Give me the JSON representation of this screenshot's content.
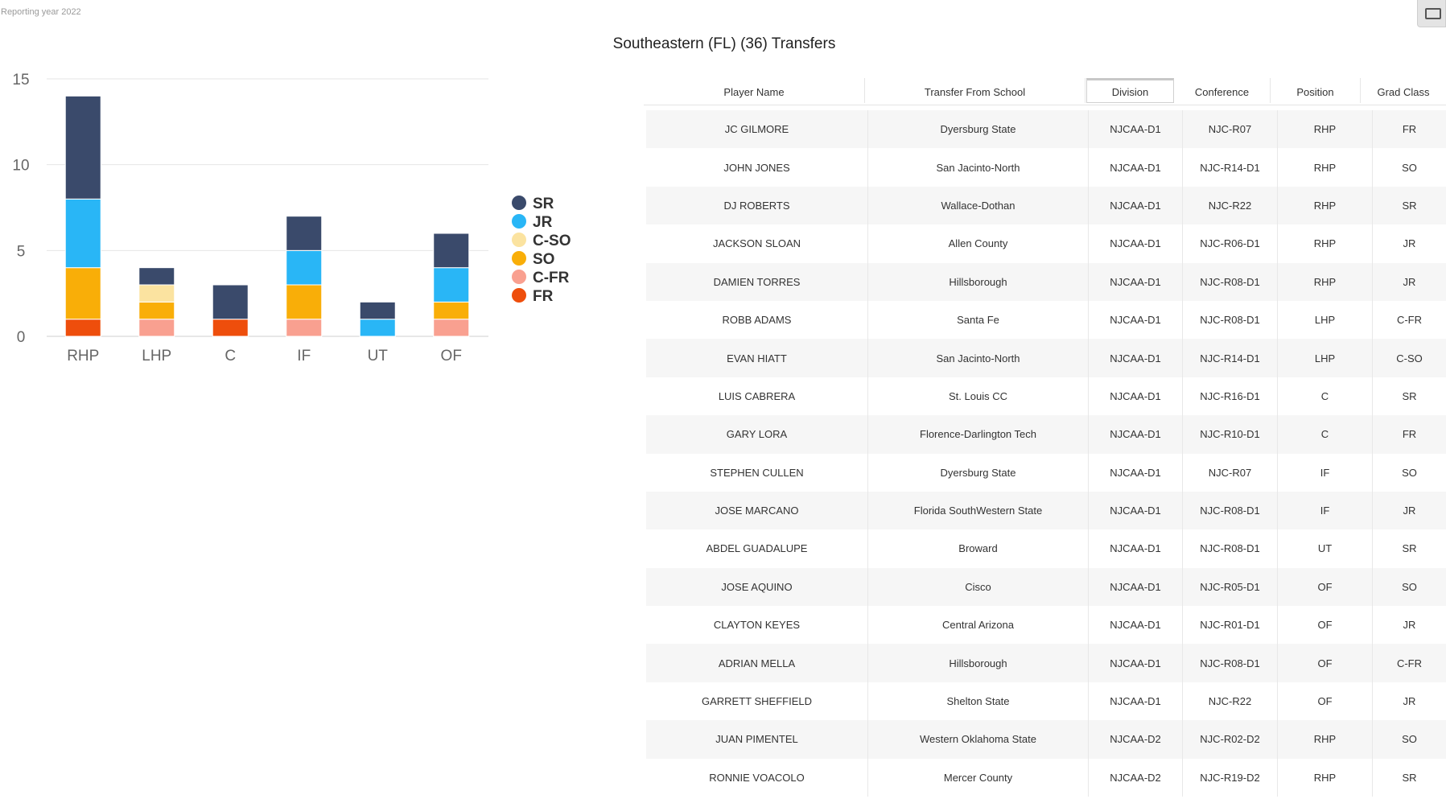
{
  "reporting_year": "Reporting year 2022",
  "page_title": "Southeastern (FL) (36) Transfers",
  "colors": {
    "SR": "#3a4a6b",
    "JR": "#29b6f6",
    "C-SO": "#fbe3a0",
    "SO": "#f9ae08",
    "C-FR": "#f9a090",
    "FR": "#ee4e0c"
  },
  "chart_data": {
    "type": "bar",
    "stacked": true,
    "categories": [
      "RHP",
      "LHP",
      "C",
      "IF",
      "UT",
      "OF"
    ],
    "series": [
      {
        "name": "FR",
        "values": [
          1,
          0,
          1,
          0,
          0,
          0
        ]
      },
      {
        "name": "C-FR",
        "values": [
          0,
          1,
          0,
          1,
          0,
          1
        ]
      },
      {
        "name": "SO",
        "values": [
          3,
          1,
          0,
          2,
          0,
          1
        ]
      },
      {
        "name": "C-SO",
        "values": [
          0,
          1,
          0,
          0,
          0,
          0
        ]
      },
      {
        "name": "JR",
        "values": [
          4,
          0,
          0,
          2,
          1,
          2
        ]
      },
      {
        "name": "SR",
        "values": [
          6,
          1,
          2,
          2,
          1,
          2
        ]
      }
    ],
    "legend": [
      "SR",
      "JR",
      "C-SO",
      "SO",
      "C-FR",
      "FR"
    ],
    "legend_position": "right",
    "yticks": [
      0,
      5,
      10,
      15
    ],
    "ylim": [
      0,
      15
    ],
    "grid": true
  },
  "table": {
    "columns": [
      "Player Name",
      "Transfer From School",
      "Division",
      "Conference",
      "Position",
      "Grad Class"
    ],
    "active_column": "Division",
    "rows": [
      [
        "JC GILMORE",
        "Dyersburg State",
        "NJCAA-D1",
        "NJC-R07",
        "RHP",
        "FR"
      ],
      [
        "JOHN JONES",
        "San Jacinto-North",
        "NJCAA-D1",
        "NJC-R14-D1",
        "RHP",
        "SO"
      ],
      [
        "DJ ROBERTS",
        "Wallace-Dothan",
        "NJCAA-D1",
        "NJC-R22",
        "RHP",
        "SR"
      ],
      [
        "JACKSON SLOAN",
        "Allen County",
        "NJCAA-D1",
        "NJC-R06-D1",
        "RHP",
        "JR"
      ],
      [
        "DAMIEN TORRES",
        "Hillsborough",
        "NJCAA-D1",
        "NJC-R08-D1",
        "RHP",
        "JR"
      ],
      [
        "ROBB ADAMS",
        "Santa Fe",
        "NJCAA-D1",
        "NJC-R08-D1",
        "LHP",
        "C-FR"
      ],
      [
        "EVAN HIATT",
        "San Jacinto-North",
        "NJCAA-D1",
        "NJC-R14-D1",
        "LHP",
        "C-SO"
      ],
      [
        "LUIS CABRERA",
        "St. Louis CC",
        "NJCAA-D1",
        "NJC-R16-D1",
        "C",
        "SR"
      ],
      [
        "GARY LORA",
        "Florence-Darlington Tech",
        "NJCAA-D1",
        "NJC-R10-D1",
        "C",
        "FR"
      ],
      [
        "STEPHEN CULLEN",
        "Dyersburg State",
        "NJCAA-D1",
        "NJC-R07",
        "IF",
        "SO"
      ],
      [
        "JOSE MARCANO",
        "Florida SouthWestern State",
        "NJCAA-D1",
        "NJC-R08-D1",
        "IF",
        "JR"
      ],
      [
        "ABDEL GUADALUPE",
        "Broward",
        "NJCAA-D1",
        "NJC-R08-D1",
        "UT",
        "SR"
      ],
      [
        "JOSE AQUINO",
        "Cisco",
        "NJCAA-D1",
        "NJC-R05-D1",
        "OF",
        "SO"
      ],
      [
        "CLAYTON KEYES",
        "Central Arizona",
        "NJCAA-D1",
        "NJC-R01-D1",
        "OF",
        "JR"
      ],
      [
        "ADRIAN MELLA",
        "Hillsborough",
        "NJCAA-D1",
        "NJC-R08-D1",
        "OF",
        "C-FR"
      ],
      [
        "GARRETT SHEFFIELD",
        "Shelton State",
        "NJCAA-D1",
        "NJC-R22",
        "OF",
        "JR"
      ],
      [
        "JUAN PIMENTEL",
        "Western Oklahoma State",
        "NJCAA-D2",
        "NJC-R02-D2",
        "RHP",
        "SO"
      ],
      [
        "RONNIE VOACOLO",
        "Mercer County",
        "NJCAA-D2",
        "NJC-R19-D2",
        "RHP",
        "SR"
      ]
    ]
  }
}
